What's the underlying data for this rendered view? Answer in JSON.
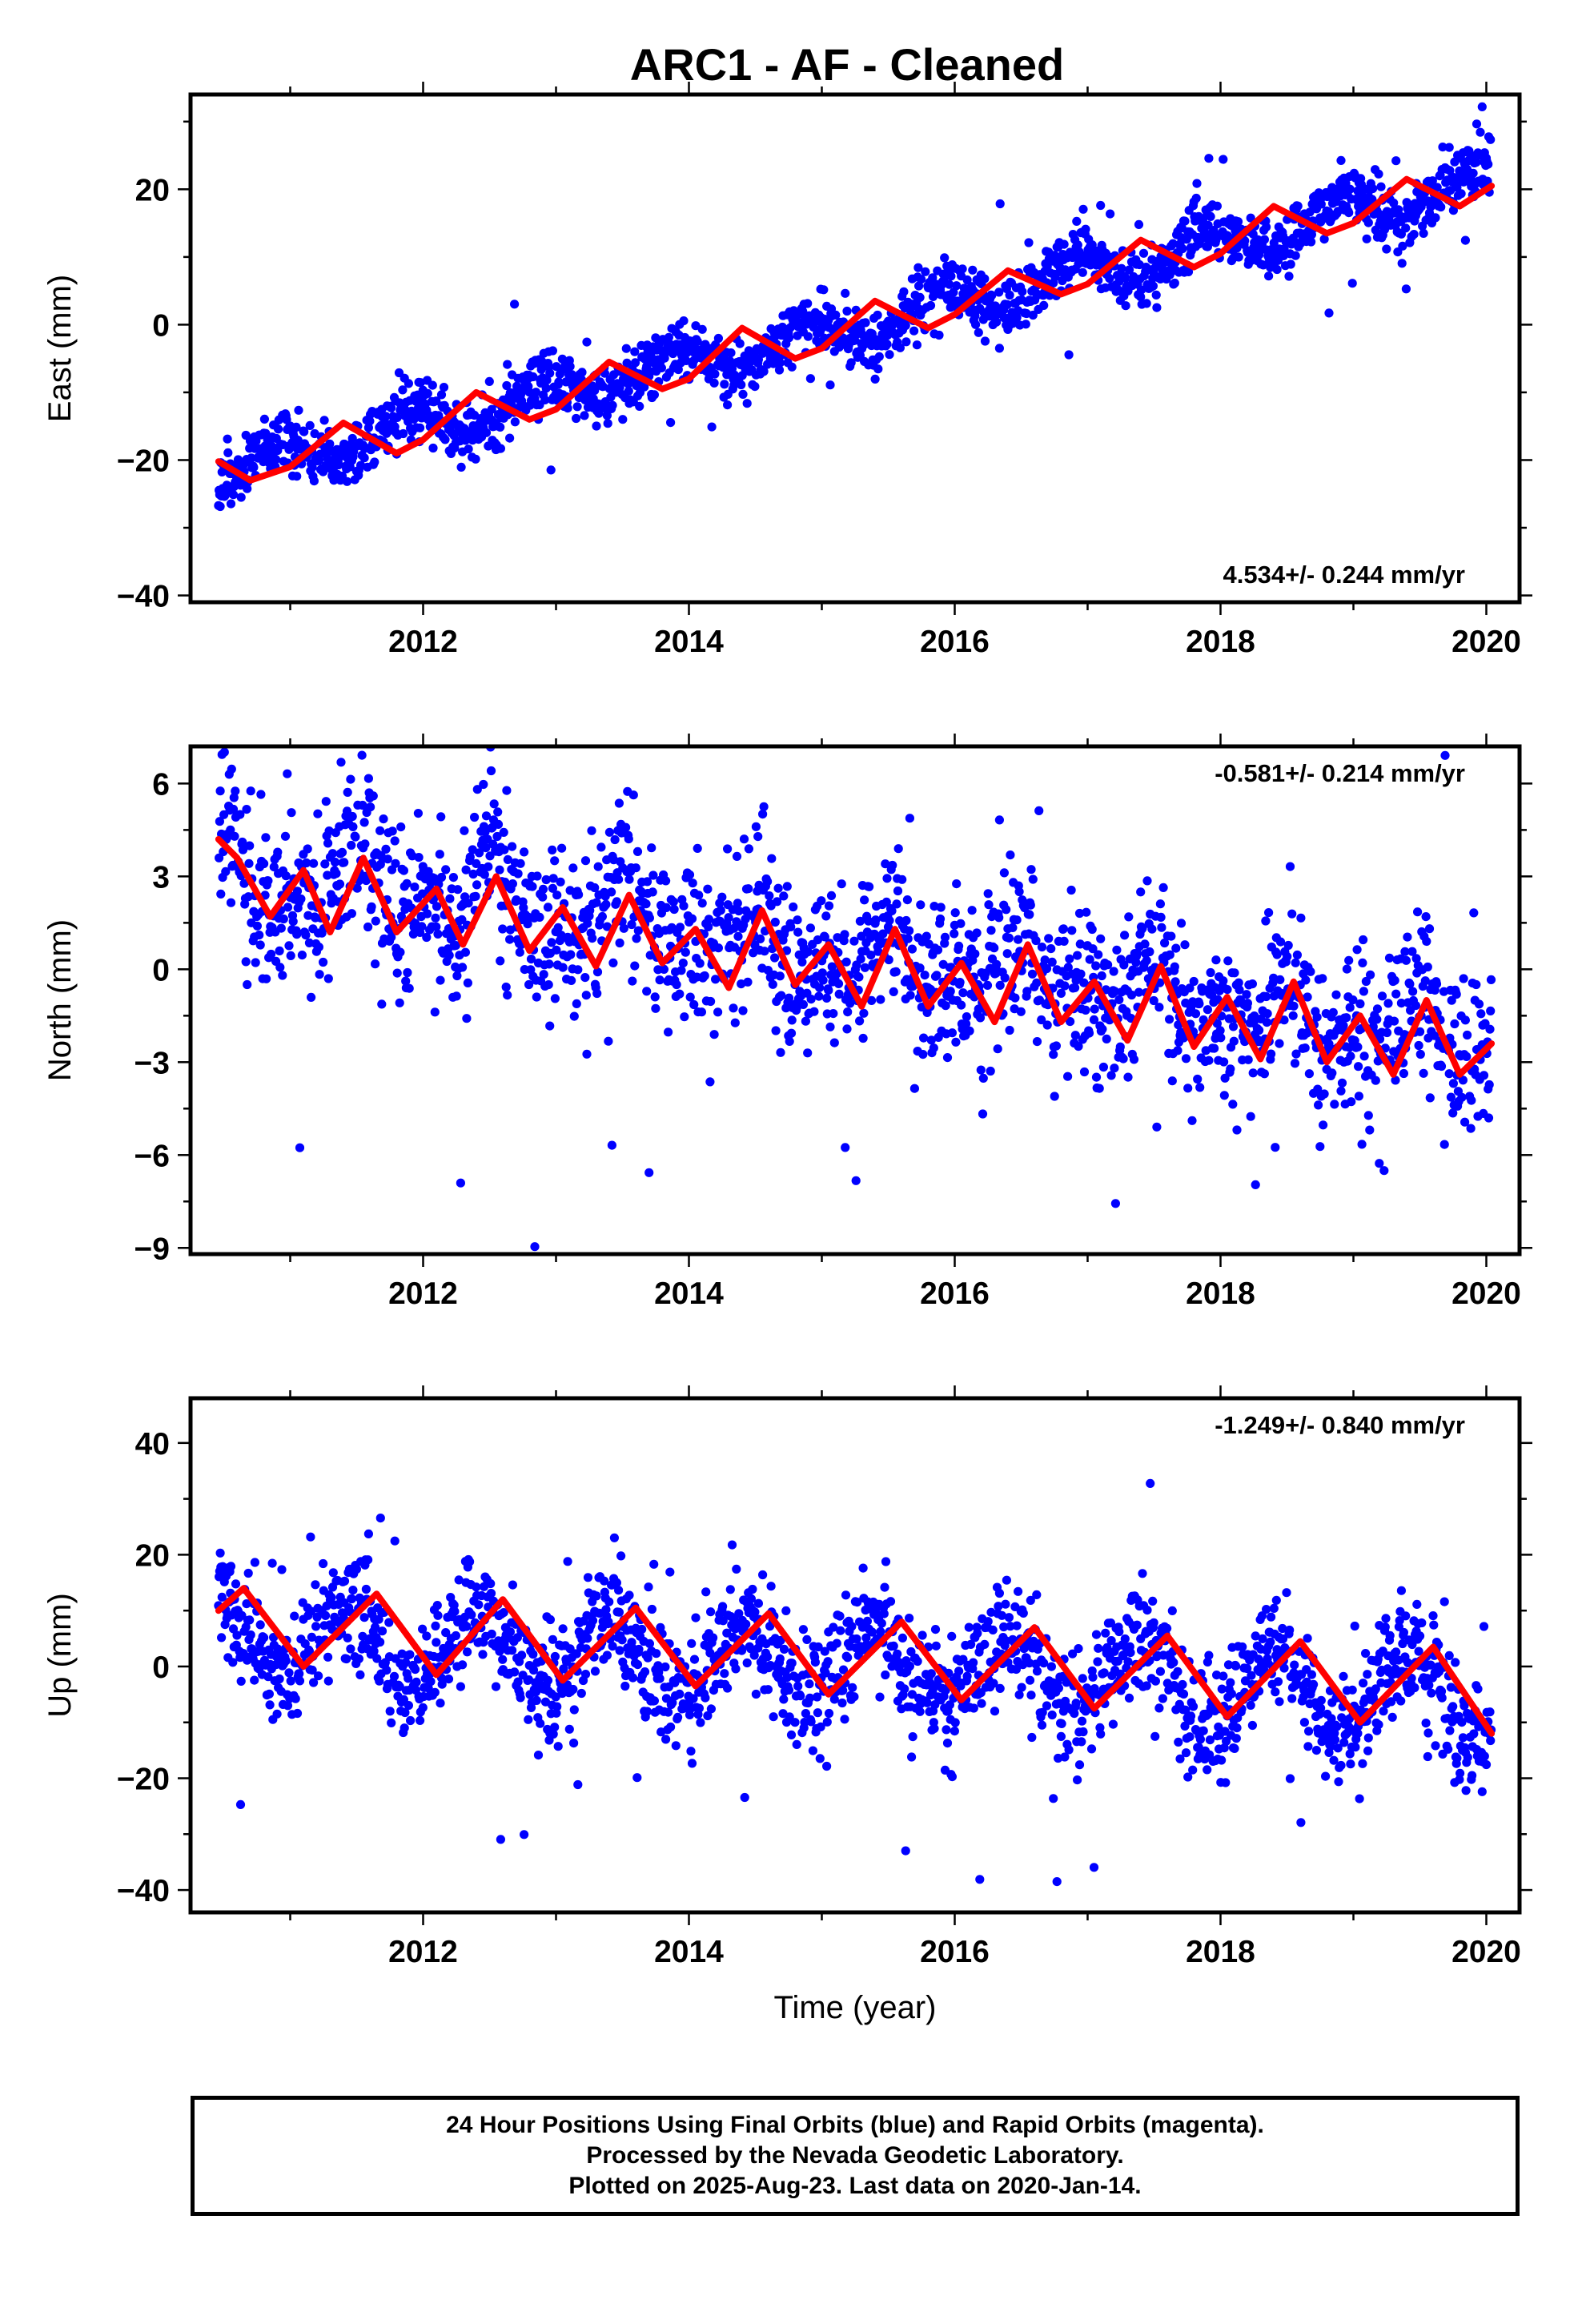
{
  "title": "ARC1  - AF - Cleaned",
  "footer": {
    "line1": "24 Hour Positions Using Final Orbits (blue) and Rapid Orbits (magenta).",
    "line2": "Processed by the Nevada Geodetic Laboratory.",
    "line3": "Plotted on 2025-Aug-23. Last data on 2020-Jan-14."
  },
  "colors": {
    "data": "#0000ff",
    "model": "#ff0000",
    "frame": "#000000"
  },
  "chart_data": [
    {
      "type": "scatter",
      "id": "east",
      "ylabel": "East (mm)",
      "xlabel": "",
      "xlim": [
        2010.25,
        2020.25
      ],
      "ylim": [
        -41,
        34
      ],
      "xticks": [
        2012,
        2014,
        2016,
        2018,
        2020
      ],
      "yticks": [
        -40,
        -20,
        0,
        20
      ],
      "rate_text": "4.534+/- 0.244 mm/yr",
      "rate_position": "bottom-right",
      "series": [
        {
          "name": "",
          "kind": "points",
          "trend": {
            "t0": 2010.46,
            "v0": -22.0,
            "slope": 4.534
          },
          "seasonal": [
            {
              "period": 1.0,
              "amplitude": 2.5,
              "phase": 2010.9
            }
          ],
          "scatter_sd": 2.2
        },
        {
          "name": "",
          "kind": "model",
          "x": [
            2010.46,
            2010.7,
            2011.0,
            2011.4,
            2011.8,
            2012.0,
            2012.4,
            2012.8,
            2013.0,
            2013.4,
            2013.8,
            2014.0,
            2014.4,
            2014.8,
            2015.0,
            2015.4,
            2015.8,
            2016.0,
            2016.4,
            2016.8,
            2017.0,
            2017.4,
            2017.8,
            2018.0,
            2018.4,
            2018.8,
            2019.0,
            2019.4,
            2019.8,
            2020.04
          ],
          "y": [
            -20.2,
            -23.0,
            -21.0,
            -14.5,
            -19.0,
            -17.0,
            -10.0,
            -14.0,
            -12.5,
            -5.5,
            -9.5,
            -8.0,
            -0.5,
            -5.0,
            -3.5,
            3.5,
            -0.5,
            1.5,
            8.0,
            4.5,
            6.0,
            12.5,
            8.5,
            10.5,
            17.5,
            13.5,
            15.0,
            21.5,
            17.5,
            20.5
          ]
        }
      ]
    },
    {
      "type": "scatter",
      "id": "north",
      "ylabel": "North (mm)",
      "xlabel": "",
      "xlim": [
        2010.25,
        2020.25
      ],
      "ylim": [
        -9.2,
        7.2
      ],
      "xticks": [
        2012,
        2014,
        2016,
        2018,
        2020
      ],
      "yticks": [
        -9,
        -6,
        -3,
        0,
        3,
        6
      ],
      "rate_text": "-0.581+/- 0.214 mm/yr",
      "rate_position": "top-right",
      "series": [
        {
          "name": "",
          "kind": "points",
          "trend": {
            "t0": 2010.46,
            "v0": 3.2,
            "slope": -0.581
          },
          "seasonal": [
            {
              "period": 1.0,
              "amplitude": 0.9,
              "phase": 2010.5
            },
            {
              "period": 0.5,
              "amplitude": 0.6,
              "phase": 2010.5
            }
          ],
          "scatter_sd": 1.3
        },
        {
          "name": "",
          "kind": "model",
          "x": [
            2010.46,
            2010.6,
            2010.85,
            2011.1,
            2011.3,
            2011.55,
            2011.8,
            2012.1,
            2012.3,
            2012.55,
            2012.8,
            2013.05,
            2013.3,
            2013.55,
            2013.8,
            2014.05,
            2014.3,
            2014.55,
            2014.8,
            2015.05,
            2015.3,
            2015.55,
            2015.8,
            2016.05,
            2016.3,
            2016.55,
            2016.8,
            2017.05,
            2017.3,
            2017.55,
            2017.8,
            2018.05,
            2018.3,
            2018.55,
            2018.8,
            2019.05,
            2019.3,
            2019.55,
            2019.8,
            2020.04
          ],
          "y": [
            4.2,
            3.6,
            1.7,
            3.2,
            1.2,
            3.6,
            1.2,
            2.6,
            0.8,
            3.0,
            0.6,
            2.0,
            0.1,
            2.4,
            0.2,
            1.3,
            -0.6,
            1.9,
            -0.5,
            0.8,
            -1.2,
            1.3,
            -1.2,
            0.2,
            -1.7,
            0.8,
            -1.7,
            -0.4,
            -2.3,
            0.1,
            -2.5,
            -0.9,
            -2.9,
            -0.4,
            -3.0,
            -1.5,
            -3.4,
            -1.0,
            -3.4,
            -2.4
          ]
        }
      ]
    },
    {
      "type": "scatter",
      "id": "up",
      "ylabel": "Up (mm)",
      "xlabel": "Time (year)",
      "xlim": [
        2010.25,
        2020.25
      ],
      "ylim": [
        -44,
        48
      ],
      "xticks": [
        2012,
        2014,
        2016,
        2018,
        2020
      ],
      "yticks": [
        -40,
        -20,
        0,
        20,
        40
      ],
      "rate_text": "-1.249+/- 0.840 mm/yr",
      "rate_position": "top-right",
      "series": [
        {
          "name": "",
          "kind": "points",
          "trend": {
            "t0": 2010.46,
            "v0": 6.0,
            "slope": -1.249
          },
          "seasonal": [
            {
              "period": 1.0,
              "amplitude": 7.0,
              "phase": 2010.4
            }
          ],
          "scatter_sd": 5.0
        },
        {
          "name": "",
          "kind": "model",
          "x": [
            2010.46,
            2010.65,
            2011.1,
            2011.65,
            2012.1,
            2012.6,
            2013.05,
            2013.6,
            2014.05,
            2014.6,
            2015.05,
            2015.6,
            2016.05,
            2016.6,
            2017.05,
            2017.6,
            2018.05,
            2018.6,
            2019.05,
            2019.6,
            2020.04
          ],
          "y": [
            10.0,
            14.0,
            0.0,
            13.0,
            -1.5,
            12.0,
            -2.5,
            10.5,
            -3.5,
            9.5,
            -5.0,
            8.0,
            -6.0,
            7.0,
            -7.5,
            5.5,
            -9.0,
            4.5,
            -10.0,
            3.5,
            -12.0
          ]
        }
      ]
    }
  ]
}
